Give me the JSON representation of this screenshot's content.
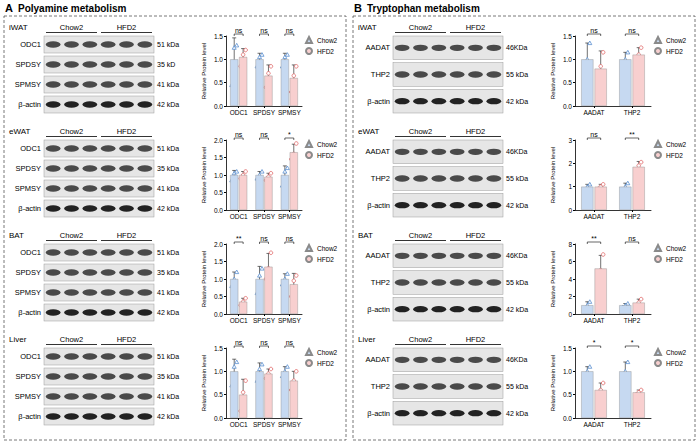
{
  "panels": [
    {
      "letter": "A",
      "title": "Polyamine metabolism",
      "blots": [
        {
          "tissue": "iWAT",
          "groups": [
            "Chow2",
            "HFD2"
          ],
          "bands": [
            {
              "protein": "ODC1",
              "size": "51 kDa"
            },
            {
              "protein": "SPDSY",
              "size": "35 kD"
            },
            {
              "protein": "SPMSY",
              "size": "41 kDa"
            },
            {
              "protein": "β-actin",
              "size": "42 kDa"
            }
          ]
        },
        {
          "tissue": "eWAT",
          "groups": [
            "Chow2",
            "HFD2"
          ],
          "bands": [
            {
              "protein": "ODC1",
              "size": "51 kDa"
            },
            {
              "protein": "SPDSY",
              "size": "35 kDa"
            },
            {
              "protein": "SPMSY",
              "size": "41 kDa"
            },
            {
              "protein": "β-actin",
              "size": "42 kDa"
            }
          ]
        },
        {
          "tissue": "BAT",
          "groups": [
            "Chow2",
            "HFD2"
          ],
          "bands": [
            {
              "protein": "ODC1",
              "size": "51 kDa"
            },
            {
              "protein": "SPDSY",
              "size": "35 kDa"
            },
            {
              "protein": "SPMSY",
              "size": "41 kDa"
            },
            {
              "protein": "β-actin",
              "size": "42 kDa"
            }
          ]
        },
        {
          "tissue": "Liver",
          "groups": [
            "Chow2",
            "HFD2"
          ],
          "bands": [
            {
              "protein": "ODC1",
              "size": "51 kDa"
            },
            {
              "protein": "SPDSY",
              "size": "35 kDa"
            },
            {
              "protein": "SPMSY",
              "size": "41 kDa"
            },
            {
              "protein": "β-actin",
              "size": "42 kDa"
            }
          ]
        }
      ]
    },
    {
      "letter": "B",
      "title": "Tryptophan metabolism",
      "blots": [
        {
          "tissue": "iWAT",
          "groups": [
            "Chow2",
            "HFD2"
          ],
          "bands": [
            {
              "protein": "AADAT",
              "size": "46KDa"
            },
            {
              "protein": "THP2",
              "size": "55 kDa"
            },
            {
              "protein": "β-actin",
              "size": "42 kDa"
            }
          ]
        },
        {
          "tissue": "eWAT",
          "groups": [
            "Chow2",
            "HFD2"
          ],
          "bands": [
            {
              "protein": "AADAT",
              "size": "46KDa"
            },
            {
              "protein": "THP2",
              "size": "55 kDa"
            },
            {
              "protein": "β-actin",
              "size": "42 kDa"
            }
          ]
        },
        {
          "tissue": "BAT",
          "groups": [
            "Chow2",
            "HFD2"
          ],
          "bands": [
            {
              "protein": "AADAT",
              "size": "46KDa"
            },
            {
              "protein": "THP2",
              "size": "55 kDa"
            },
            {
              "protein": "β-actin",
              "size": "42 kDa"
            }
          ]
        },
        {
          "tissue": "Liver",
          "groups": [
            "Chow2",
            "HFD2"
          ],
          "bands": [
            {
              "protein": "AADAT",
              "size": "46KDa"
            },
            {
              "protein": "THP2",
              "size": "55 kDa"
            },
            {
              "protein": "β-actin",
              "size": "42 kDa"
            }
          ]
        }
      ]
    }
  ],
  "chart_data": [
    {
      "type": "bar",
      "categories": [
        "ODC1",
        "SPDSY",
        "SPMSY"
      ],
      "y_label": "Relative Protein level",
      "ylim": [
        0,
        1.5
      ],
      "yticks": [
        {
          "value": 0,
          "label": "0.0"
        },
        0.5,
        {
          "value": 1,
          "label": "1.0"
        },
        1.5
      ],
      "grid": false,
      "legend": "right",
      "annotations": [
        "ns",
        "ns",
        "ns"
      ],
      "series": [
        {
          "name": "Chow2",
          "color": "#c6d9f1",
          "marker": "triangle",
          "values": [
            1.0,
            1.0,
            1.0
          ],
          "errors": [
            0.46,
            0.13,
            0.13
          ],
          "points": [
            [
              0.45,
              1.25,
              1.3
            ],
            [
              0.85,
              1.05,
              1.1
            ],
            [
              0.85,
              1.05,
              1.1
            ]
          ]
        },
        {
          "name": "HFD2",
          "color": "#f8cfcf",
          "marker": "circle",
          "values": [
            1.05,
            0.65,
            0.6
          ],
          "errors": [
            0.18,
            0.23,
            0.28
          ],
          "points": [
            [
              0.85,
              1.1,
              1.2
            ],
            [
              0.4,
              0.7,
              0.85
            ],
            [
              0.3,
              0.65,
              0.85
            ]
          ]
        }
      ]
    },
    {
      "type": "bar",
      "categories": [
        "ODC1",
        "SPDSY",
        "SPMSY"
      ],
      "y_label": "Relative Protein level",
      "ylim": [
        0,
        2
      ],
      "yticks": [
        {
          "value": 0,
          "label": "0.0"
        },
        0.5,
        {
          "value": 1,
          "label": "1.0"
        },
        1.5,
        {
          "value": 2,
          "label": "2.0"
        }
      ],
      "grid": false,
      "legend": "right",
      "annotations": [
        "ns",
        "ns",
        "*"
      ],
      "series": [
        {
          "name": "Chow2",
          "color": "#c6d9f1",
          "marker": "triangle",
          "values": [
            1.0,
            1.0,
            1.0
          ],
          "errors": [
            0.13,
            0.1,
            0.26
          ],
          "points": [
            [
              0.85,
              1.05,
              1.1
            ],
            [
              0.9,
              1.0,
              1.1
            ],
            [
              0.7,
              1.1,
              1.2
            ]
          ]
        },
        {
          "name": "HFD2",
          "color": "#f8cfcf",
          "marker": "circle",
          "values": [
            1.0,
            0.95,
            1.65
          ],
          "errors": [
            0.1,
            0.1,
            0.23
          ],
          "points": [
            [
              0.9,
              1.0,
              1.1
            ],
            [
              0.85,
              0.95,
              1.05
            ],
            [
              1.45,
              1.6,
              1.9
            ]
          ]
        }
      ]
    },
    {
      "type": "bar",
      "categories": [
        "ODC1",
        "SPDSY",
        "SPMSY"
      ],
      "y_label": "Relative Protein level",
      "ylim": [
        0,
        2
      ],
      "yticks": [
        {
          "value": 0,
          "label": "0.0"
        },
        0.5,
        {
          "value": 1,
          "label": "1.0"
        },
        1.5,
        {
          "value": 2,
          "label": "2.0"
        }
      ],
      "grid": false,
      "legend": "right",
      "annotations": [
        "**",
        "ns",
        "ns"
      ],
      "series": [
        {
          "name": "Chow2",
          "color": "#c6d9f1",
          "marker": "triangle",
          "values": [
            1.0,
            1.0,
            1.0
          ],
          "errors": [
            0.2,
            0.36,
            0.15
          ],
          "points": [
            [
              0.8,
              1.0,
              1.2
            ],
            [
              0.6,
              1.1,
              1.3
            ],
            [
              0.85,
              1.0,
              1.15
            ]
          ]
        },
        {
          "name": "HFD2",
          "color": "#f8cfcf",
          "marker": "circle",
          "values": [
            0.35,
            1.35,
            0.85
          ],
          "errors": [
            0.1,
            0.38,
            0.31
          ],
          "points": [
            [
              0.25,
              0.35,
              0.45
            ],
            [
              1.0,
              1.3,
              1.75
            ],
            [
              0.5,
              0.95,
              1.1
            ]
          ]
        }
      ]
    },
    {
      "type": "bar",
      "categories": [
        "ODC1",
        "SPDSY",
        "SPMSY"
      ],
      "y_label": "Relative Protein level",
      "ylim": [
        0,
        1.5
      ],
      "yticks": [
        {
          "value": 0,
          "label": "0.0"
        },
        0.5,
        {
          "value": 1,
          "label": "1.0"
        },
        1.5
      ],
      "grid": false,
      "legend": "right",
      "annotations": [
        "ns",
        "ns",
        "ns"
      ],
      "series": [
        {
          "name": "Chow2",
          "color": "#c6d9f1",
          "marker": "triangle",
          "values": [
            1.0,
            1.0,
            1.0
          ],
          "errors": [
            0.26,
            0.18,
            0.1
          ],
          "points": [
            [
              0.7,
              1.1,
              1.2
            ],
            [
              0.8,
              1.05,
              1.15
            ],
            [
              0.9,
              1.0,
              1.1
            ]
          ]
        },
        {
          "name": "HFD2",
          "color": "#f8cfcf",
          "marker": "circle",
          "values": [
            0.5,
            0.95,
            0.8
          ],
          "errors": [
            0.33,
            0.1,
            0.2
          ],
          "points": [
            [
              0.15,
              0.55,
              0.8
            ],
            [
              0.85,
              0.95,
              1.05
            ],
            [
              0.6,
              0.8,
              1.0
            ]
          ]
        }
      ]
    },
    {
      "type": "bar",
      "categories": [
        "AADAT",
        "THP2"
      ],
      "y_label": "Relative Protein level",
      "ylim": [
        0,
        1.5
      ],
      "yticks": [
        {
          "value": 0,
          "label": "0.0"
        },
        0.5,
        {
          "value": 1,
          "label": "1.0"
        },
        1.5
      ],
      "grid": false,
      "legend": "right",
      "annotations": [
        "ns",
        "ns"
      ],
      "series": [
        {
          "name": "Chow2",
          "color": "#c6d9f1",
          "marker": "triangle",
          "values": [
            1.0,
            1.0
          ],
          "errors": [
            0.35,
            0.15
          ],
          "points": [
            [
              0.65,
              1.0,
              1.35
            ],
            [
              0.85,
              1.0,
              1.15
            ]
          ]
        },
        {
          "name": "HFD2",
          "color": "#f8cfcf",
          "marker": "circle",
          "values": [
            0.8,
            1.1
          ],
          "errors": [
            0.38,
            0.15
          ],
          "points": [
            [
              0.4,
              0.85,
              1.15
            ],
            [
              0.95,
              1.1,
              1.25
            ]
          ]
        }
      ]
    },
    {
      "type": "bar",
      "categories": [
        "AADAT",
        "THP2"
      ],
      "y_label": "Relative Protein level",
      "ylim": [
        0,
        3
      ],
      "yticks": [
        0,
        1,
        2,
        3
      ],
      "grid": false,
      "legend": "right",
      "annotations": [
        "ns",
        "**"
      ],
      "series": [
        {
          "name": "Chow2",
          "color": "#c6d9f1",
          "marker": "triangle",
          "values": [
            1.0,
            1.0
          ],
          "errors": [
            0.1,
            0.15
          ],
          "points": [
            [
              0.9,
              1.0,
              1.1
            ],
            [
              0.85,
              1.0,
              1.15
            ]
          ]
        },
        {
          "name": "HFD2",
          "color": "#f8cfcf",
          "marker": "circle",
          "values": [
            1.0,
            1.85
          ],
          "errors": [
            0.1,
            0.23
          ],
          "points": [
            [
              0.9,
              1.0,
              1.1
            ],
            [
              1.6,
              1.9,
              2.05
            ]
          ]
        }
      ]
    },
    {
      "type": "bar",
      "categories": [
        "AADAT",
        "THP2"
      ],
      "y_label": "Relative Protein level",
      "ylim": [
        0,
        8
      ],
      "yticks": [
        0,
        2,
        4,
        6,
        8
      ],
      "grid": false,
      "legend": "right",
      "annotations": [
        "**",
        "ns"
      ],
      "series": [
        {
          "name": "Chow2",
          "color": "#c6d9f1",
          "marker": "triangle",
          "values": [
            1.0,
            1.0
          ],
          "errors": [
            0.4,
            0.2
          ],
          "points": [
            [
              0.6,
              1.0,
              1.4
            ],
            [
              0.8,
              1.0,
              1.2
            ]
          ]
        },
        {
          "name": "HFD2",
          "color": "#f8cfcf",
          "marker": "circle",
          "values": [
            5.2,
            1.3
          ],
          "errors": [
            1.5,
            0.4
          ],
          "points": [
            [
              3.8,
              5.0,
              6.8
            ],
            [
              0.9,
              1.3,
              1.7
            ]
          ]
        }
      ]
    },
    {
      "type": "bar",
      "categories": [
        "AADAT",
        "THP2"
      ],
      "y_label": "Relative Protein level",
      "ylim": [
        0,
        1.5
      ],
      "yticks": [
        {
          "value": 0,
          "label": "0.0"
        },
        0.5,
        {
          "value": 1,
          "label": "1.0"
        },
        1.5
      ],
      "grid": false,
      "legend": "right",
      "annotations": [
        "*",
        "*"
      ],
      "series": [
        {
          "name": "Chow2",
          "color": "#c6d9f1",
          "marker": "triangle",
          "values": [
            1.0,
            1.0
          ],
          "errors": [
            0.1,
            0.2
          ],
          "points": [
            [
              0.9,
              1.0,
              1.1
            ],
            [
              0.8,
              1.0,
              1.2
            ]
          ]
        },
        {
          "name": "HFD2",
          "color": "#f8cfcf",
          "marker": "circle",
          "values": [
            0.6,
            0.55
          ],
          "errors": [
            0.15,
            0.05
          ],
          "points": [
            [
              0.45,
              0.6,
              0.75
            ],
            [
              0.5,
              0.55,
              0.6
            ]
          ]
        }
      ]
    }
  ]
}
